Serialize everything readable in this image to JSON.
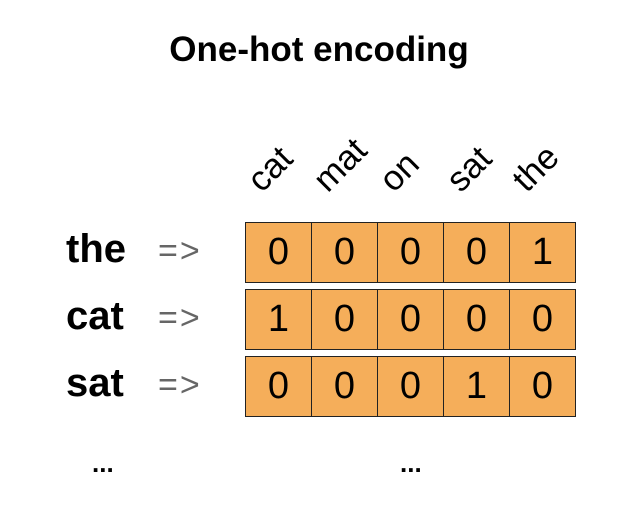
{
  "title": "One-hot encoding",
  "vocabulary": [
    "cat",
    "mat",
    "on",
    "sat",
    "the"
  ],
  "arrow": "=>",
  "rows": [
    {
      "word": "the",
      "vector": [
        0,
        0,
        0,
        0,
        1
      ]
    },
    {
      "word": "cat",
      "vector": [
        1,
        0,
        0,
        0,
        0
      ]
    },
    {
      "word": "sat",
      "vector": [
        0,
        0,
        0,
        1,
        0
      ]
    }
  ],
  "ellipsis": "...",
  "colors": {
    "cell_fill": "#f5ae5a",
    "arrow": "#666666"
  }
}
